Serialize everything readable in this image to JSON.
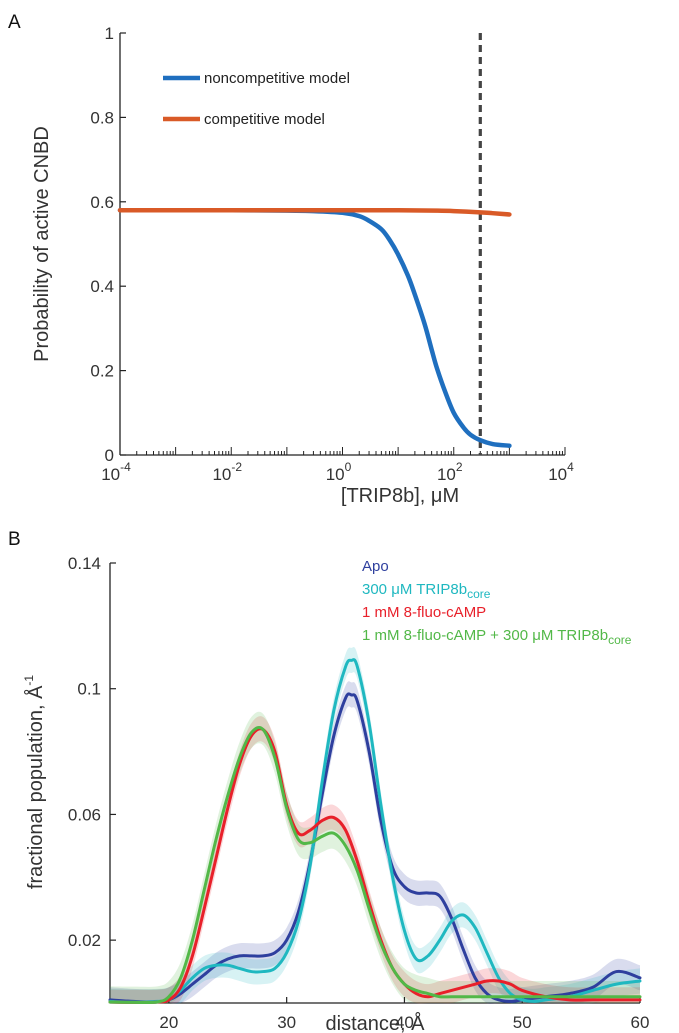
{
  "chart_data": [
    {
      "panel": "A",
      "type": "line",
      "xscale": "log",
      "xlabel": "[TRIP8b], μM",
      "ylabel": "Probability of active CNBD",
      "xlim": [
        0.0001,
        10000
      ],
      "ylim": [
        0,
        1
      ],
      "xtick_labels": [
        {
          "base": "10",
          "exp": "-4"
        },
        {
          "base": "10",
          "exp": "-2"
        },
        {
          "base": "10",
          "exp": "0"
        },
        {
          "base": "10",
          "exp": "2"
        },
        {
          "base": "10",
          "exp": "4"
        }
      ],
      "xticks": [
        0.0001,
        0.01,
        1,
        100,
        10000
      ],
      "ytick_labels": [
        "0",
        "0.2",
        "0.4",
        "0.6",
        "0.8",
        "1"
      ],
      "yticks": [
        0,
        0.2,
        0.4,
        0.6,
        0.8,
        1
      ],
      "legend_position": "top-left",
      "vline": {
        "x": 300,
        "style": "dashed",
        "color": "#444444"
      },
      "series": [
        {
          "name": "noncompetitive model",
          "color": "#1f6fbf",
          "x": [
            0.0001,
            0.001,
            0.01,
            0.1,
            0.3,
            1,
            2,
            3,
            5,
            7,
            10,
            15,
            20,
            30,
            40,
            50,
            70,
            100,
            150,
            200,
            300,
            500,
            1000
          ],
          "y": [
            0.58,
            0.58,
            0.58,
            0.579,
            0.578,
            0.574,
            0.566,
            0.555,
            0.535,
            0.51,
            0.475,
            0.425,
            0.38,
            0.31,
            0.25,
            0.205,
            0.15,
            0.1,
            0.065,
            0.048,
            0.035,
            0.026,
            0.022
          ]
        },
        {
          "name": "competitive model",
          "color": "#d95a27",
          "x": [
            0.0001,
            0.001,
            0.01,
            0.1,
            1,
            10,
            50,
            100,
            300,
            500,
            1000
          ],
          "y": [
            0.58,
            0.58,
            0.58,
            0.58,
            0.58,
            0.58,
            0.579,
            0.578,
            0.575,
            0.573,
            0.57
          ]
        }
      ]
    },
    {
      "panel": "B",
      "type": "line",
      "xlabel": "distance, Å",
      "ylabel": {
        "main": "fractional population, Å",
        "sup": "-1"
      },
      "xlim": [
        15,
        60
      ],
      "ylim": [
        0,
        0.14
      ],
      "xtick_labels": [
        "20",
        "30",
        "40",
        "50",
        "60"
      ],
      "xticks": [
        20,
        30,
        40,
        50,
        60
      ],
      "ytick_labels": [
        "0.02",
        "0.06",
        "0.1",
        "0.14"
      ],
      "yticks": [
        0.02,
        0.06,
        0.1,
        0.14
      ],
      "legend_position": "top-right",
      "legend": [
        {
          "text": "Apo",
          "sub": "",
          "suffix": "",
          "color": "#2e3f9e"
        },
        {
          "text": "300 μM TRIP8b",
          "sub": "core",
          "suffix": "",
          "color": "#1fb8c0"
        },
        {
          "text": "1 mM 8-fluo-cAMP",
          "sub": "",
          "suffix": "",
          "color": "#e8202a"
        },
        {
          "text": "1 mM 8-fluo-cAMP + 300 μM TRIP8b",
          "sub": "core",
          "suffix": "",
          "color": "#52b848"
        }
      ],
      "series": [
        {
          "color": "#2e3f9e",
          "band": 0.004,
          "x": [
            15,
            17,
            19,
            20,
            21,
            22,
            23,
            24,
            25,
            26,
            27,
            28,
            29,
            30,
            31,
            32,
            33,
            34,
            35,
            35.5,
            36,
            37,
            38,
            39,
            40,
            41,
            42,
            43,
            44,
            45,
            46,
            47,
            48,
            49,
            50,
            52,
            54,
            56,
            58,
            60
          ],
          "y": [
            0.001,
            0.0005,
            0.0003,
            0.001,
            0.003,
            0.006,
            0.009,
            0.012,
            0.014,
            0.015,
            0.015,
            0.015,
            0.016,
            0.02,
            0.029,
            0.045,
            0.066,
            0.085,
            0.097,
            0.098,
            0.096,
            0.08,
            0.058,
            0.043,
            0.037,
            0.035,
            0.035,
            0.034,
            0.027,
            0.017,
            0.008,
            0.003,
            0.001,
            0.0005,
            0.001,
            0.002,
            0.003,
            0.005,
            0.01,
            0.008
          ]
        },
        {
          "color": "#1fb8c0",
          "band": 0.004,
          "x": [
            15,
            17,
            19,
            20,
            21,
            22,
            23,
            24,
            25,
            26,
            27,
            28,
            29,
            30,
            31,
            32,
            33,
            34,
            35,
            35.5,
            36,
            37,
            38,
            39,
            40,
            41,
            42,
            43,
            44,
            45,
            46,
            47,
            48,
            49,
            50,
            51,
            52,
            54,
            56,
            58,
            60
          ],
          "y": [
            0.0005,
            0.0003,
            0.0005,
            0.001,
            0.004,
            0.008,
            0.011,
            0.012,
            0.012,
            0.011,
            0.01,
            0.01,
            0.011,
            0.016,
            0.026,
            0.044,
            0.07,
            0.093,
            0.107,
            0.109,
            0.107,
            0.089,
            0.063,
            0.04,
            0.023,
            0.014,
            0.015,
            0.02,
            0.026,
            0.028,
            0.024,
            0.016,
            0.008,
            0.003,
            0.001,
            0.0005,
            0.001,
            0.002,
            0.004,
            0.006,
            0.007
          ]
        },
        {
          "color": "#e8202a",
          "band": 0.004,
          "x": [
            15,
            17,
            19,
            20,
            21,
            22,
            23,
            24,
            25,
            26,
            27,
            28,
            29,
            30,
            31,
            32,
            33,
            34,
            35,
            36,
            37,
            38,
            39,
            40,
            41,
            42,
            43,
            44,
            45,
            46,
            47,
            48,
            49,
            50,
            52,
            54,
            56,
            58,
            60
          ],
          "y": [
            0.0003,
            0.0002,
            0.0003,
            0.001,
            0.005,
            0.015,
            0.03,
            0.046,
            0.062,
            0.076,
            0.085,
            0.087,
            0.08,
            0.063,
            0.054,
            0.055,
            0.058,
            0.059,
            0.055,
            0.045,
            0.032,
            0.02,
            0.011,
            0.006,
            0.003,
            0.002,
            0.003,
            0.004,
            0.005,
            0.006,
            0.007,
            0.007,
            0.006,
            0.004,
            0.002,
            0.001,
            0.001,
            0.001,
            0.001
          ]
        },
        {
          "color": "#52b848",
          "band": 0.005,
          "x": [
            15,
            17,
            19,
            20,
            21,
            22,
            23,
            24,
            25,
            26,
            27,
            28,
            29,
            30,
            31,
            32,
            33,
            34,
            35,
            36,
            37,
            38,
            39,
            40,
            41,
            42,
            43,
            44,
            45,
            46,
            47,
            48,
            50,
            52,
            54,
            56,
            58,
            60
          ],
          "y": [
            0.0003,
            0.0002,
            0.0003,
            0.002,
            0.008,
            0.02,
            0.036,
            0.052,
            0.066,
            0.078,
            0.086,
            0.087,
            0.078,
            0.062,
            0.052,
            0.051,
            0.053,
            0.054,
            0.05,
            0.042,
            0.03,
            0.019,
            0.011,
            0.006,
            0.004,
            0.003,
            0.002,
            0.002,
            0.002,
            0.002,
            0.002,
            0.002,
            0.002,
            0.002,
            0.002,
            0.002,
            0.002,
            0.002
          ]
        }
      ]
    }
  ]
}
